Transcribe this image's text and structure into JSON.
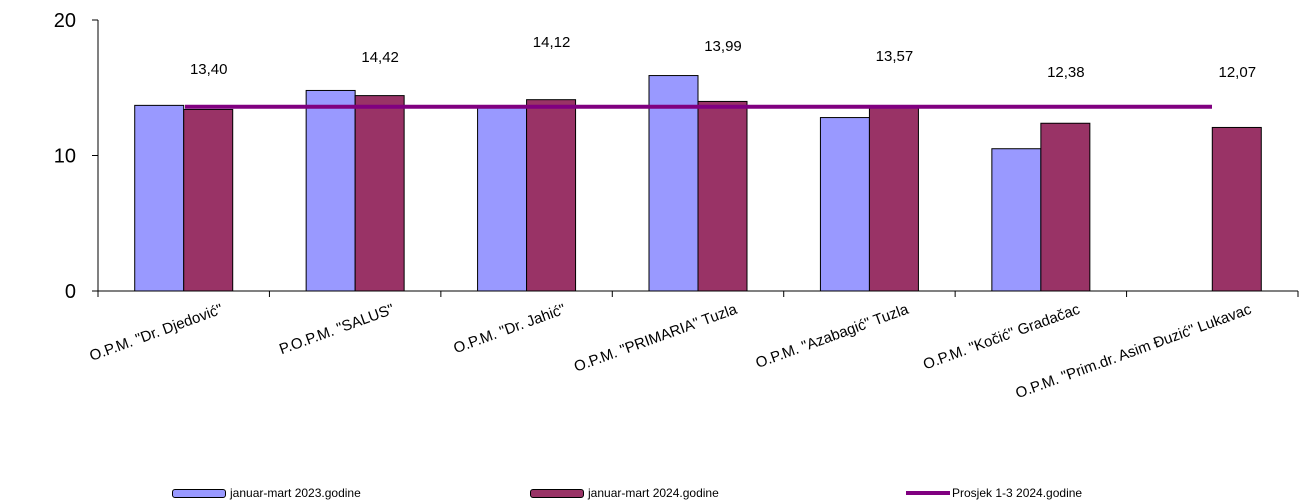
{
  "chart_data": {
    "type": "bar",
    "categories": [
      "O.P.M. \"Dr. Djedović\"",
      "P.O.P.M. \"SALUS\"",
      "O.P.M. \"Dr. Jahić\"",
      "O.P.M. \"PRIMARIA\" Tuzla",
      "O.P.M. \"Azabagić\" Tuzla",
      "O.P.M. \"Kočić\" Gradačac",
      "O.P.M. \"Prim.dr. Asim Đuzić\" Lukavac"
    ],
    "series": [
      {
        "name": "januar-mart 2023.godine",
        "values": [
          13.7,
          14.8,
          13.6,
          15.9,
          12.8,
          10.5,
          null
        ],
        "color": "#9999ff"
      },
      {
        "name": "januar-mart 2024.godine",
        "values": [
          13.4,
          14.42,
          14.12,
          13.99,
          13.57,
          12.38,
          12.07
        ],
        "color": "#993366"
      }
    ],
    "data_labels": [
      "13,40",
      "14,42",
      "14,12",
      "13,99",
      "13,57",
      "12,38",
      "12,07"
    ],
    "average_line": {
      "name": "Prosjek  1-3 2024.godine",
      "value": 13.6,
      "color": "#800080"
    },
    "yticks": [
      "0",
      "10",
      "20"
    ],
    "ylim": [
      0,
      20
    ],
    "grid": false,
    "legend_position": "bottom"
  }
}
